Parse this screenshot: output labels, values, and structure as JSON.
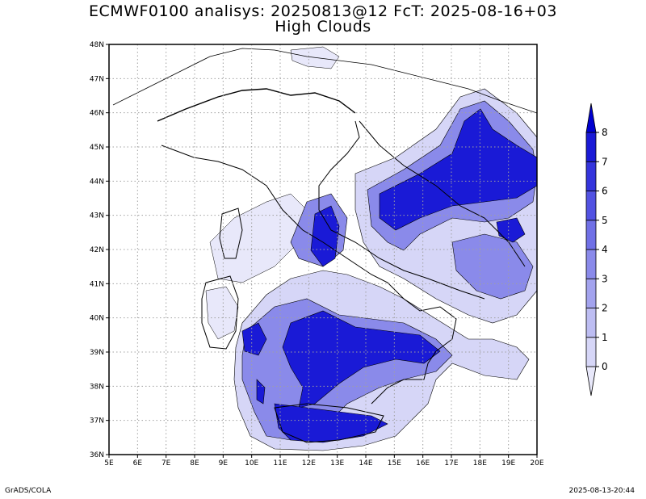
{
  "title": {
    "line1": "ECMWF0100 analisys: 20250813@12 FcT: 2025-08-16+03",
    "line2": "High Clouds"
  },
  "footer": {
    "left": "GrADS/COLA",
    "right": "2025-08-13-20:44"
  },
  "map": {
    "lon_min": 5,
    "lon_max": 20,
    "lat_min": 36,
    "lat_max": 48,
    "lon_labels": [
      "5E",
      "6E",
      "7E",
      "8E",
      "9E",
      "10E",
      "11E",
      "12E",
      "13E",
      "14E",
      "15E",
      "16E",
      "17E",
      "18E",
      "19E",
      "20E"
    ],
    "lat_labels": [
      "36N",
      "37N",
      "38N",
      "39N",
      "40N",
      "41N",
      "42N",
      "43N",
      "44N",
      "45N",
      "46N",
      "47N",
      "48N"
    ],
    "grid": true
  },
  "colorbar": {
    "labels": [
      "0",
      "1",
      "2",
      "3",
      "4",
      "5",
      "6",
      "7",
      "8"
    ],
    "colors": [
      "#e8e8fa",
      "#d6d6f7",
      "#bdbdf2",
      "#a3a3ee",
      "#8a8aea",
      "#7070e6",
      "#5252e2",
      "#3434dc",
      "#1a1ad6",
      "#0000d0"
    ]
  },
  "colors": {
    "land_outline": "#000000",
    "grid": "#a0a0a0"
  }
}
